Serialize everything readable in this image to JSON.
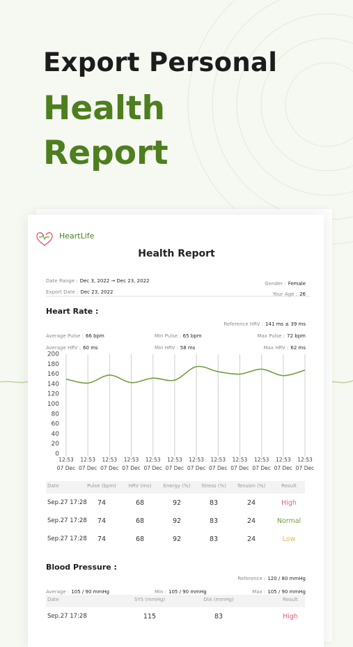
{
  "headline": {
    "line1": "Export Personal",
    "line2": "Health",
    "line3": "Report"
  },
  "report": {
    "brand": "HeartLife",
    "title": "Health Report",
    "info": [
      {
        "label": "Date Range :",
        "value": "Dec 3, 2022 → Dec 23, 2022"
      },
      {
        "label": "Export Date :",
        "value": "Dec 23, 2022"
      },
      {
        "label": "Gender :",
        "value": "Female"
      },
      {
        "label": "Your Age :",
        "value": "26"
      }
    ]
  },
  "heart_rate": {
    "title": "Heart Rate :",
    "reference": {
      "label": "Reference HRV :",
      "value": "141 ms ± 39 ms"
    },
    "stats": [
      [
        {
          "label": "Average Pulse :",
          "value": "66 bpm"
        },
        {
          "label": "Min Pulse :",
          "value": "65 bpm"
        },
        {
          "label": "Max Pulse :",
          "value": "72 bpm"
        }
      ],
      [
        {
          "label": "Average HRV :",
          "value": "60 ms"
        },
        {
          "label": "Min HRV :",
          "value": "58 ms"
        },
        {
          "label": "Max HRV :",
          "value": "62 ms"
        }
      ]
    ],
    "table": {
      "header": [
        "Date",
        "Pulse (bpm)",
        "HRV (ms)",
        "Energy (%)",
        "Stress (%)",
        "Tension (%)",
        "Result"
      ],
      "rows": [
        [
          "Sep.27 17:28",
          "74",
          "68",
          "92",
          "83",
          "24",
          "High"
        ],
        [
          "Sep.27 17:28",
          "74",
          "68",
          "92",
          "83",
          "24",
          "Normal"
        ],
        [
          "Sep.27 17:28",
          "74",
          "68",
          "92",
          "83",
          "24",
          "Low"
        ]
      ]
    }
  },
  "chart_data": {
    "type": "line",
    "categories": [
      "12:53\n07 Dec",
      "12:53\n07 Dec",
      "12:53\n07 Dec",
      "12:53\n07 Dec",
      "12:53\n07 Dec",
      "12:53\n07 Dec",
      "12:53\n07 Dec",
      "12:53\n07 Dec",
      "12:53\n07 Dec",
      "12:53\n07 Dec",
      "12:53\n07 Dec",
      "12:53\n07 Dec"
    ],
    "values": [
      150,
      142,
      158,
      143,
      152,
      148,
      175,
      165,
      160,
      170,
      157,
      168
    ],
    "color": "#6f9e3c",
    "ylim": [
      0,
      200
    ],
    "yticks": [
      0,
      20,
      40,
      60,
      80,
      100,
      120,
      140,
      160,
      180,
      200
    ],
    "grid": "vertical"
  },
  "blood_pressure": {
    "title": "Blood Pressure :",
    "reference": {
      "label": "Reference :",
      "value": "120 / 80 mmHg"
    },
    "stats": [
      {
        "label": "Average :",
        "value": "105 / 90 mmHg"
      },
      {
        "label": "Min :",
        "value": "105 / 90 mmHg"
      },
      {
        "label": "Max :",
        "value": "105 / 90 mmHg"
      }
    ],
    "table": {
      "header": [
        "Date",
        "SYS (mmHg)",
        "DIA (mmHg)",
        "Result"
      ],
      "rows": [
        [
          "Sep.27 17:28",
          "115",
          "83",
          "High"
        ]
      ]
    }
  },
  "result_colors": {
    "High": "#e0607a",
    "Normal": "#6f9e3c",
    "Low": "#eab54a"
  }
}
